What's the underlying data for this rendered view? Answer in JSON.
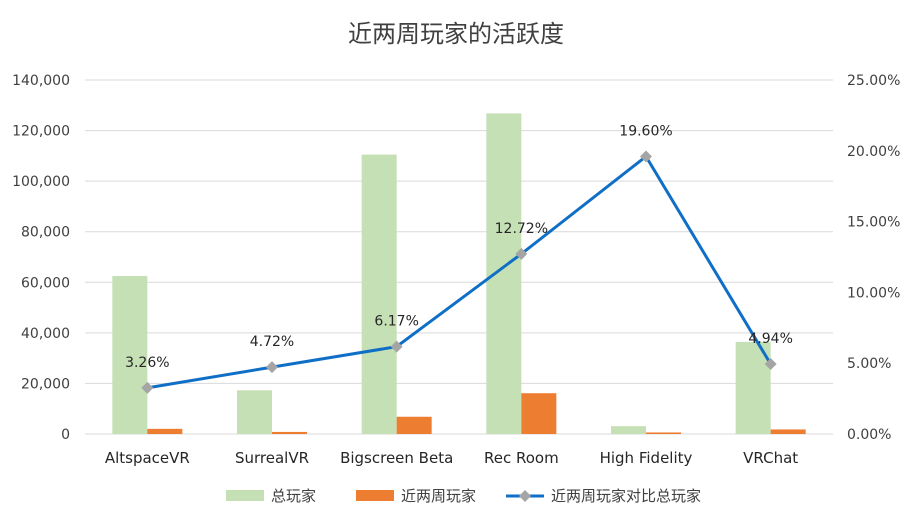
{
  "chart_data": {
    "type": "bar",
    "title": "近两周玩家的活跃度",
    "categories": [
      "AltspaceVR",
      "SurrealVR",
      "Bigscreen Beta",
      "Rec Room",
      "High Fidelity",
      "VRChat"
    ],
    "series": [
      {
        "name": "总玩家",
        "type": "bar",
        "axis": "left",
        "color": "#c5e0b4",
        "values": [
          62500,
          17300,
          110500,
          126800,
          3100,
          36400
        ]
      },
      {
        "name": "近两周玩家",
        "type": "bar",
        "axis": "left",
        "color": "#ed7d31",
        "values": [
          2040,
          820,
          6820,
          16130,
          610,
          1800
        ]
      },
      {
        "name": "近两周玩家对比总玩家",
        "type": "line",
        "axis": "right",
        "color": "#0f6fc6",
        "marker_color": "#a5a5a5",
        "values": [
          3.26,
          4.72,
          6.17,
          12.72,
          19.6,
          4.94
        ],
        "labels": [
          "3.26%",
          "4.72%",
          "6.17%",
          "12.72%",
          "19.60%",
          "4.94%"
        ]
      }
    ],
    "y_left": {
      "ylim": [
        0,
        140000
      ],
      "ticks": [
        "0",
        "20,000",
        "40,000",
        "60,000",
        "80,000",
        "100,000",
        "120,000",
        "140,000"
      ]
    },
    "y_right": {
      "ylim": [
        0,
        25
      ],
      "ticks": [
        "0.00%",
        "5.00%",
        "10.00%",
        "15.00%",
        "20.00%",
        "25.00%"
      ]
    },
    "grid": true,
    "legend": "bottom"
  }
}
